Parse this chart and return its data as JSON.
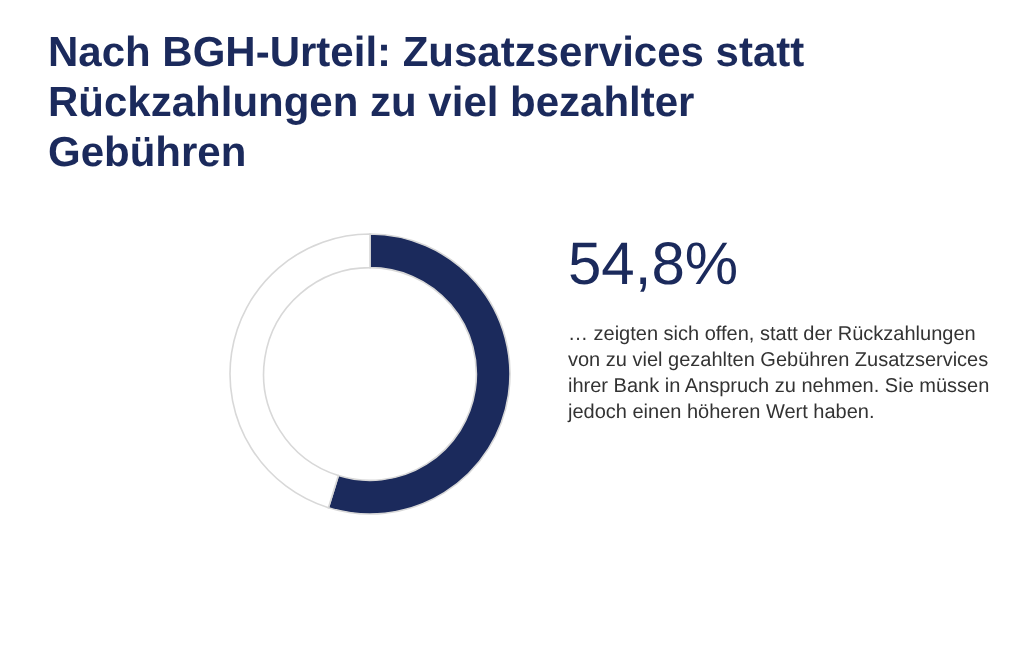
{
  "chart_data": {
    "type": "donut",
    "title": "Nach BGH-Urteil: Zusatzservices statt Rückzahlungen zu viel bezahlter Gebühren",
    "categories": [
      null,
      null
    ],
    "values": [
      54.8,
      45.2
    ],
    "colors": [
      "#1b2a5c",
      "#ffffff"
    ],
    "value_labels": [
      "54,8%",
      null
    ],
    "annotations": [
      "… zeigten sich offen, statt der Rückzahlungen von zu viel gezahlten Gebühren Zusatzservices ihrer Bank in Anspruch zu nehmen. Sie müssen jedoch einen höheren Wert haben."
    ]
  }
}
